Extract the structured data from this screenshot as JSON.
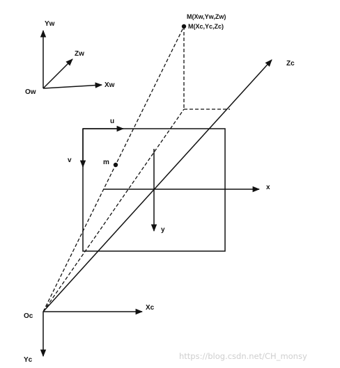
{
  "labels": {
    "world_y": "Yw",
    "world_z": "Zw",
    "world_x": "Xw",
    "world_origin": "Ow",
    "point_world": "M(Xw,Yw,Zw)",
    "point_camera": "M(Xc,Yc,Zc)",
    "optical_axis": "Zc",
    "pixel_u": "u",
    "pixel_v": "v",
    "projection": "m",
    "image_x": "x",
    "image_y": "y",
    "camera_origin": "Oc",
    "camera_x": "Xc",
    "camera_y": "Yc"
  },
  "watermark": "https://blog.csdn.net/CH_monsy"
}
